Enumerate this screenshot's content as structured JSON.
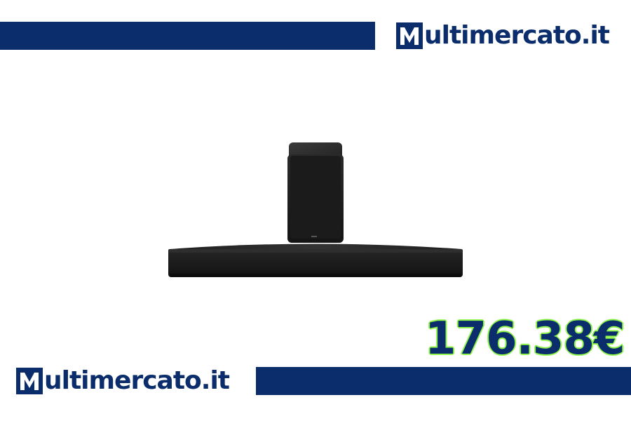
{
  "brand": {
    "name": "ultimercato.it",
    "logo_icon": "m-letter-logo-icon",
    "color": "#0b2d6b"
  },
  "product": {
    "image_icon": "soundbar-with-subwoofer-icon"
  },
  "price": {
    "value": "176.38€",
    "text_color": "#0b2d6b",
    "outline_color": "#8ef54a"
  }
}
